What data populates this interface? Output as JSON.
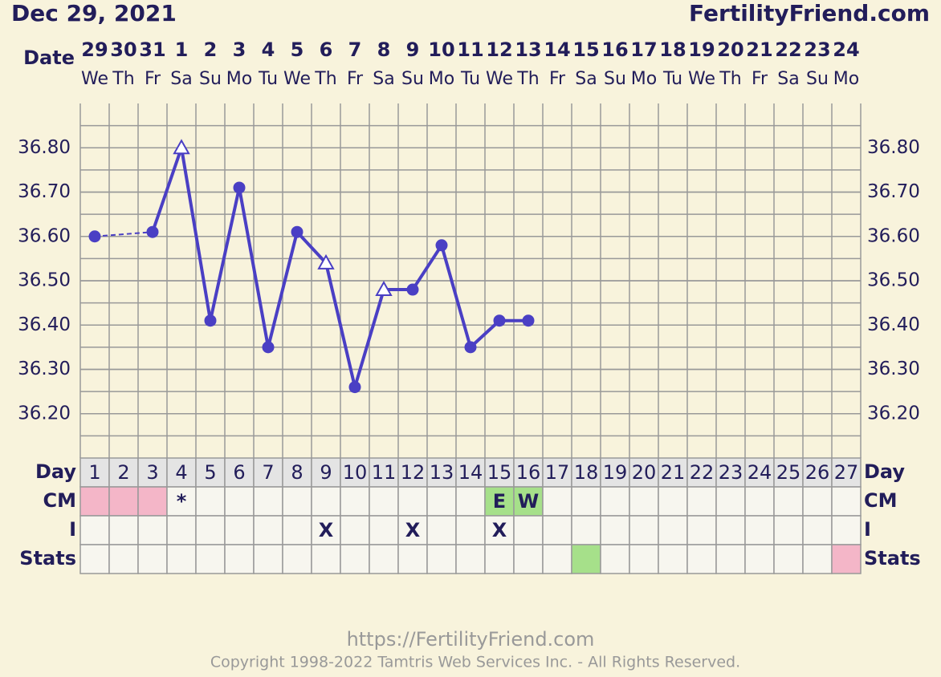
{
  "header": {
    "date": "Dec 29, 2021",
    "site": "FertilityFriend.com"
  },
  "chart_data": {
    "type": "line",
    "row_labels": {
      "date": "Date",
      "day": "Day",
      "cm": "CM",
      "i": "I",
      "stats": "Stats"
    },
    "dates": [
      "29",
      "30",
      "31",
      "1",
      "2",
      "3",
      "4",
      "5",
      "6",
      "7",
      "8",
      "9",
      "10",
      "11",
      "12",
      "13",
      "14",
      "15",
      "16",
      "17",
      "18",
      "19",
      "20",
      "21",
      "22",
      "23",
      "24"
    ],
    "weekdays": [
      "We",
      "Th",
      "Fr",
      "Sa",
      "Su",
      "Mo",
      "Tu",
      "We",
      "Th",
      "Fr",
      "Sa",
      "Su",
      "Mo",
      "Tu",
      "We",
      "Th",
      "Fr",
      "Sa",
      "Su",
      "Mo",
      "Tu",
      "We",
      "Th",
      "Fr",
      "Sa",
      "Su",
      "Mo"
    ],
    "cycle_days": [
      1,
      2,
      3,
      4,
      5,
      6,
      7,
      8,
      9,
      10,
      11,
      12,
      13,
      14,
      15,
      16,
      17,
      18,
      19,
      20,
      21,
      22,
      23,
      24,
      25,
      26,
      27
    ],
    "series": [
      {
        "color": "#4a3fc4",
        "values": [
          36.6,
          null,
          36.61,
          36.8,
          36.41,
          36.71,
          36.35,
          36.61,
          36.54,
          36.26,
          36.48,
          36.48,
          36.58,
          36.35,
          36.41,
          36.41,
          null,
          null,
          null,
          null,
          null,
          null,
          null,
          null,
          null,
          null,
          null
        ],
        "markers": [
          "circle",
          null,
          "circle",
          "triangle",
          "circle",
          "circle",
          "circle",
          "circle",
          "triangle",
          "circle",
          "triangle",
          "circle",
          "circle",
          "circle",
          "circle",
          "circle",
          null,
          null,
          null,
          null,
          null,
          null,
          null,
          null,
          null,
          null,
          null
        ]
      }
    ],
    "ylim": [
      36.1,
      36.9
    ],
    "yticks": [
      {
        "value": 36.2,
        "label": "36.20"
      },
      {
        "value": 36.3,
        "label": "36.30"
      },
      {
        "value": 36.4,
        "label": "36.40"
      },
      {
        "value": 36.5,
        "label": "36.50"
      },
      {
        "value": 36.6,
        "label": "36.60"
      },
      {
        "value": 36.7,
        "label": "36.70"
      },
      {
        "value": 36.8,
        "label": "36.80"
      }
    ],
    "cm": [
      null,
      null,
      null,
      "*",
      null,
      null,
      null,
      null,
      null,
      null,
      null,
      null,
      null,
      null,
      "E",
      "W",
      null,
      null,
      null,
      null,
      null,
      null,
      null,
      null,
      null,
      null,
      null
    ],
    "cm_colors": [
      "#f4b6c8",
      "#f4b6c8",
      "#f4b6c8",
      null,
      null,
      null,
      null,
      null,
      null,
      null,
      null,
      null,
      null,
      null,
      "#a6e08a",
      "#a6e08a",
      null,
      null,
      null,
      null,
      null,
      null,
      null,
      null,
      null,
      null,
      null
    ],
    "intercourse": [
      null,
      null,
      null,
      null,
      null,
      null,
      null,
      null,
      "X",
      null,
      null,
      "X",
      null,
      null,
      "X",
      null,
      null,
      null,
      null,
      null,
      null,
      null,
      null,
      null,
      null,
      null,
      null
    ],
    "stats_colors": [
      null,
      null,
      null,
      null,
      null,
      null,
      null,
      null,
      null,
      null,
      null,
      null,
      null,
      null,
      null,
      null,
      null,
      "#a6e08a",
      null,
      null,
      null,
      null,
      null,
      null,
      null,
      null,
      "#f4b6c8"
    ]
  },
  "footer": {
    "url": "https://FertilityFriend.com",
    "copyright": "Copyright 1998-2022 Tamtris Web Services Inc. - All Rights Reserved."
  }
}
